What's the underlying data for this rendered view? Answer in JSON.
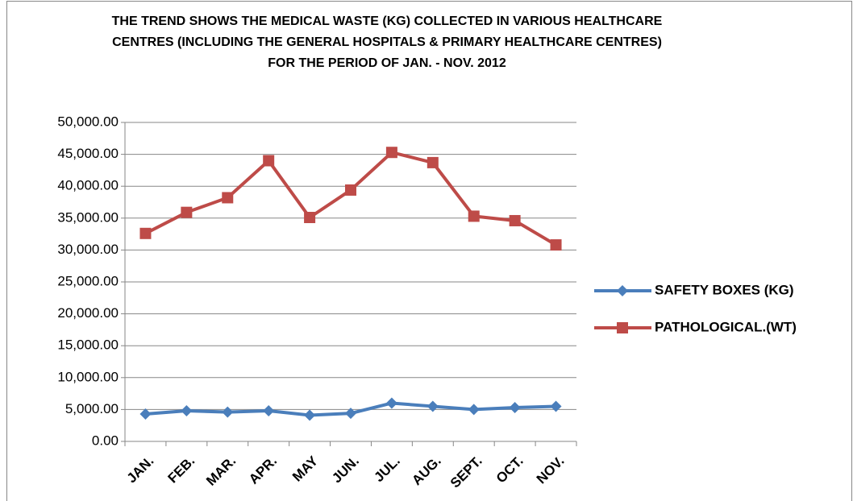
{
  "chart_data": {
    "type": "line",
    "title": "THE TREND SHOWS THE MEDICAL WASTE (KG) COLLECTED IN VARIOUS HEALTHCARE CENTRES (INCLUDING THE GENERAL HOSPITALS & PRIMARY HEALTHCARE CENTRES) FOR THE PERIOD OF JAN. - NOV. 2012",
    "categories": [
      "JAN.",
      "FEB.",
      "MAR.",
      "APR.",
      "MAY",
      "JUN.",
      "JUL.",
      "AUG.",
      "SEPT.",
      "OCT.",
      "NOV."
    ],
    "series": [
      {
        "name": "SAFETY BOXES (KG)",
        "color": "#4a7ebb",
        "marker": "diamond",
        "values": [
          4300,
          4800,
          4600,
          4800,
          4100,
          4400,
          6000,
          5500,
          5000,
          5300,
          5500
        ]
      },
      {
        "name": "PATHOLOGICAL.(WT)",
        "color": "#be4b48",
        "marker": "square",
        "values": [
          32600,
          35900,
          38200,
          44000,
          35100,
          39400,
          45300,
          43700,
          35300,
          34600,
          30800
        ]
      }
    ],
    "ylim": [
      0,
      50000
    ],
    "yticks": [
      {
        "value": 0,
        "label": "0.00"
      },
      {
        "value": 5000,
        "label": "5,000.00"
      },
      {
        "value": 10000,
        "label": "10,000.00"
      },
      {
        "value": 15000,
        "label": "15,000.00"
      },
      {
        "value": 20000,
        "label": "20,000.00"
      },
      {
        "value": 25000,
        "label": "25,000.00"
      },
      {
        "value": 30000,
        "label": "30,000.00"
      },
      {
        "value": 35000,
        "label": "35,000.00"
      },
      {
        "value": 40000,
        "label": "40,000.00"
      },
      {
        "value": 45000,
        "label": "45,000.00"
      },
      {
        "value": 50000,
        "label": "50,000.00"
      }
    ],
    "grid": true,
    "legend": "right"
  }
}
